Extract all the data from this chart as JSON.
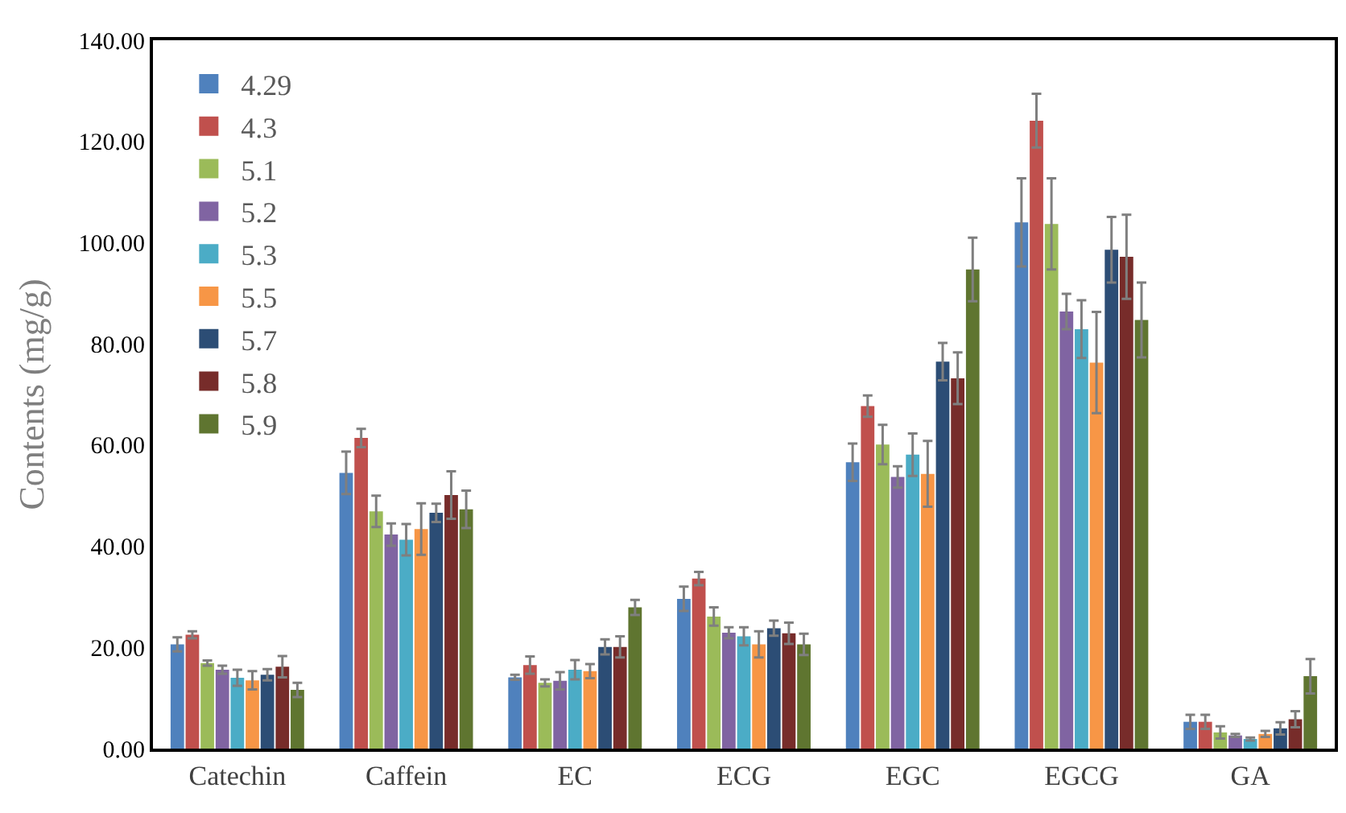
{
  "chart_data": {
    "type": "bar",
    "ylabel": "Contents (mg/g)",
    "categories": [
      "Catechin",
      "Caffein",
      "EC",
      "ECG",
      "EGC",
      "EGCG",
      "GA"
    ],
    "ylim": [
      0,
      140
    ],
    "yticks": [
      {
        "value": 0,
        "label": "0.00"
      },
      {
        "value": 20,
        "label": "20.00"
      },
      {
        "value": 40,
        "label": "40.00"
      },
      {
        "value": 60,
        "label": "60.00"
      },
      {
        "value": 80,
        "label": "80.00"
      },
      {
        "value": 100,
        "label": "100.00"
      },
      {
        "value": 120,
        "label": "120.00"
      },
      {
        "value": 140,
        "label": "140.00"
      }
    ],
    "legend": "top left",
    "series": [
      {
        "name": "4.29",
        "color": "#4f81bd",
        "values": [
          20.6,
          54.5,
          14.1,
          29.6,
          56.6,
          104.0,
          5.3
        ],
        "errors": [
          1.4,
          4.2,
          0.5,
          2.4,
          3.7,
          8.7,
          1.4
        ]
      },
      {
        "name": "4.3",
        "color": "#c0504d",
        "values": [
          22.5,
          61.4,
          16.5,
          33.6,
          67.7,
          124.1,
          5.3
        ],
        "errors": [
          0.7,
          1.8,
          1.7,
          1.3,
          2.1,
          5.3,
          1.4
        ]
      },
      {
        "name": "5.1",
        "color": "#9bbb59",
        "values": [
          16.9,
          46.9,
          13.0,
          26.1,
          60.1,
          103.7,
          3.2
        ],
        "errors": [
          0.5,
          3.1,
          0.7,
          1.8,
          3.9,
          9.0,
          1.2
        ]
      },
      {
        "name": "5.2",
        "color": "#8064a2",
        "values": [
          15.6,
          42.3,
          13.4,
          22.9,
          53.7,
          86.4,
          2.6
        ],
        "errors": [
          0.8,
          2.2,
          1.7,
          1.1,
          2.1,
          3.5,
          0.3
        ]
      },
      {
        "name": "5.3",
        "color": "#4bacc6",
        "values": [
          14.0,
          41.3,
          15.6,
          22.2,
          58.1,
          82.9,
          1.9
        ],
        "errors": [
          1.6,
          3.1,
          1.9,
          1.8,
          4.2,
          5.7,
          0.3
        ]
      },
      {
        "name": "5.5",
        "color": "#f79646",
        "values": [
          13.5,
          43.4,
          15.3,
          20.6,
          54.3,
          76.3,
          2.9
        ],
        "errors": [
          1.8,
          5.1,
          1.4,
          2.6,
          6.5,
          10.0,
          0.6
        ]
      },
      {
        "name": "5.7",
        "color": "#2c4d75",
        "values": [
          14.6,
          46.6,
          20.1,
          23.8,
          76.5,
          98.6,
          4.0
        ],
        "errors": [
          1.1,
          1.8,
          1.5,
          1.5,
          3.7,
          6.5,
          1.2
        ]
      },
      {
        "name": "5.8",
        "color": "#772c2a",
        "values": [
          16.2,
          50.1,
          20.1,
          22.8,
          73.2,
          97.2,
          5.8
        ],
        "errors": [
          2.1,
          4.7,
          2.1,
          2.1,
          5.1,
          8.3,
          1.6
        ]
      },
      {
        "name": "5.9",
        "color": "#5f7530",
        "values": [
          11.6,
          47.3,
          27.9,
          20.6,
          94.7,
          84.7,
          14.3
        ],
        "errors": [
          1.4,
          3.7,
          1.5,
          2.1,
          6.3,
          7.4,
          3.4
        ]
      }
    ]
  }
}
